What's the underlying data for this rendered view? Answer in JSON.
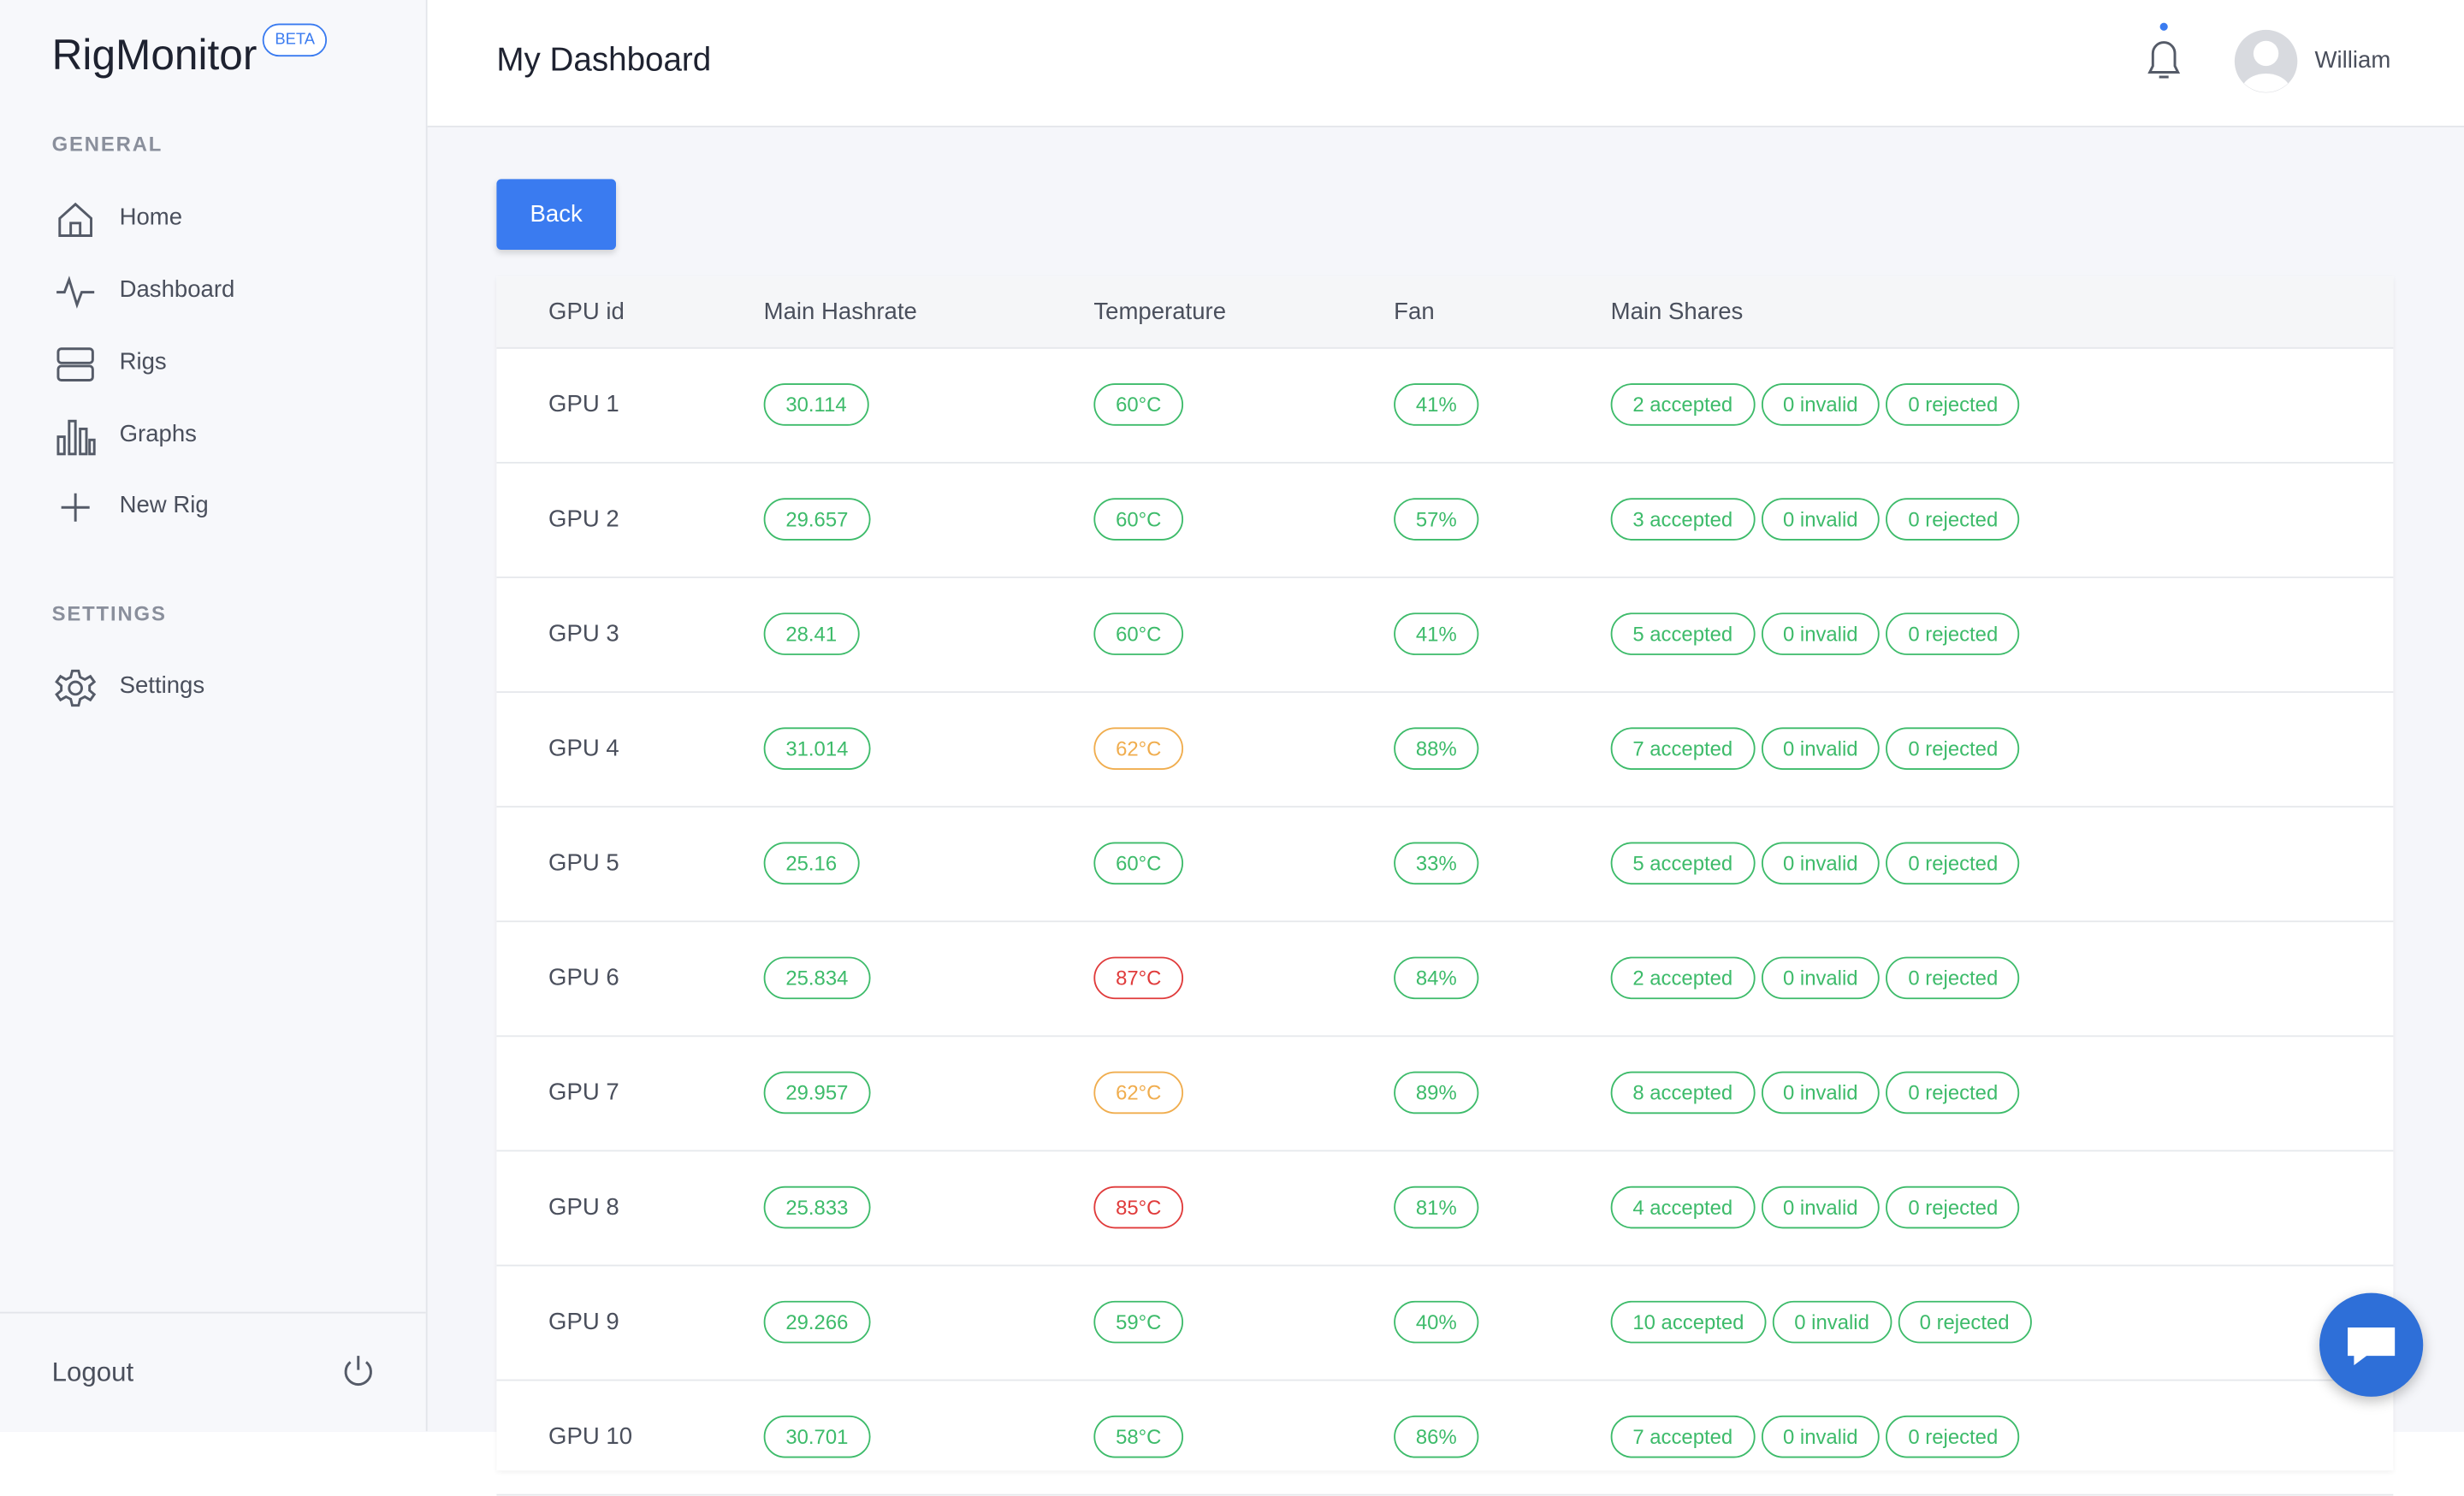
{
  "sidebar": {
    "brand": "RigMonitor",
    "badge": "BETA",
    "sections": [
      {
        "title": "GENERAL",
        "items": [
          "Home",
          "Dashboard",
          "Rigs",
          "Graphs",
          "New Rig"
        ]
      },
      {
        "title": "SETTINGS",
        "items": [
          "Settings"
        ]
      }
    ],
    "logout": "Logout"
  },
  "header": {
    "title": "My Dashboard",
    "user": "William"
  },
  "back_button": "Back",
  "table": {
    "columns": [
      "GPU id",
      "Main Hashrate",
      "Temperature",
      "Fan",
      "Main Shares"
    ],
    "rows": [
      {
        "gpu": "GPU 1",
        "hashrate": "30.114",
        "temperature": "60°C",
        "temp_color": "#3dbb6a",
        "fan": "41%",
        "shares": [
          "2 accepted",
          "0 invalid",
          "0 rejected"
        ]
      },
      {
        "gpu": "GPU 2",
        "hashrate": "29.657",
        "temperature": "60°C",
        "temp_color": "#3dbb6a",
        "fan": "57%",
        "shares": [
          "3 accepted",
          "0 invalid",
          "0 rejected"
        ]
      },
      {
        "gpu": "GPU 3",
        "hashrate": "28.41",
        "temperature": "60°C",
        "temp_color": "#3dbb6a",
        "fan": "41%",
        "shares": [
          "5 accepted",
          "0 invalid",
          "0 rejected"
        ]
      },
      {
        "gpu": "GPU 4",
        "hashrate": "31.014",
        "temperature": "62°C",
        "temp_color": "#f0ad4e",
        "fan": "88%",
        "shares": [
          "7 accepted",
          "0 invalid",
          "0 rejected"
        ]
      },
      {
        "gpu": "GPU 5",
        "hashrate": "25.16",
        "temperature": "60°C",
        "temp_color": "#3dbb6a",
        "fan": "33%",
        "shares": [
          "5 accepted",
          "0 invalid",
          "0 rejected"
        ]
      },
      {
        "gpu": "GPU 6",
        "hashrate": "25.834",
        "temperature": "87°C",
        "temp_color": "#e03b3b",
        "fan": "84%",
        "shares": [
          "2 accepted",
          "0 invalid",
          "0 rejected"
        ]
      },
      {
        "gpu": "GPU 7",
        "hashrate": "29.957",
        "temperature": "62°C",
        "temp_color": "#f0ad4e",
        "fan": "89%",
        "shares": [
          "8 accepted",
          "0 invalid",
          "0 rejected"
        ]
      },
      {
        "gpu": "GPU 8",
        "hashrate": "25.833",
        "temperature": "85°C",
        "temp_color": "#e03b3b",
        "fan": "81%",
        "shares": [
          "4 accepted",
          "0 invalid",
          "0 rejected"
        ]
      },
      {
        "gpu": "GPU 9",
        "hashrate": "29.266",
        "temperature": "59°C",
        "temp_color": "#3dbb6a",
        "fan": "40%",
        "shares": [
          "10 accepted",
          "0 invalid",
          "0 rejected"
        ]
      },
      {
        "gpu": "GPU 10",
        "hashrate": "30.701",
        "temperature": "58°C",
        "temp_color": "#3dbb6a",
        "fan": "86%",
        "shares": [
          "7 accepted",
          "0 invalid",
          "0 rejected"
        ]
      }
    ]
  }
}
